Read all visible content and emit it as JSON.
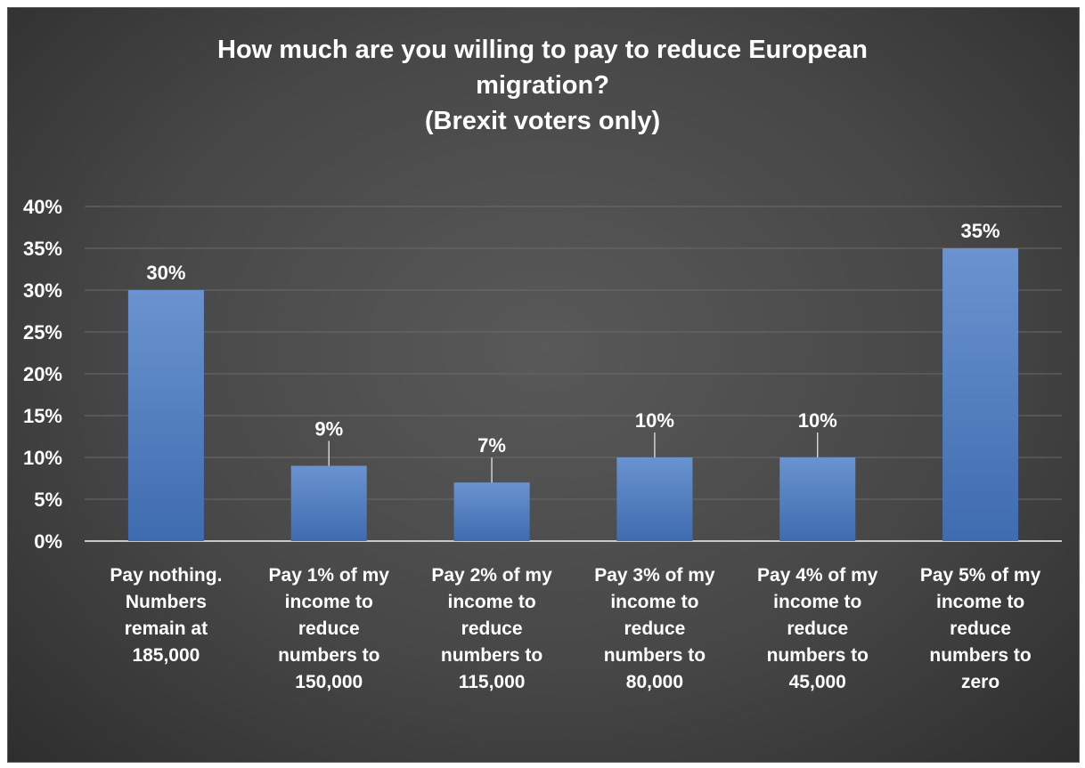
{
  "chart_data": {
    "type": "bar",
    "title": "How much are you willing  to pay to reduce European migration?",
    "subtitle": "(Brexit  voters only)",
    "title_lines": [
      "How much are you willing  to pay to reduce European",
      "migration?",
      "(Brexit  voters only)"
    ],
    "xlabel": "",
    "ylabel": "",
    "categories": [
      "Pay nothing. Numbers remain at 185,000",
      "Pay 1% of my income to reduce numbers to 150,000",
      "Pay 2% of my income to reduce numbers to 115,000",
      "Pay 3% of my income to reduce numbers to 80,000",
      "Pay 4% of my income to reduce numbers to 45,000",
      "Pay 5% of my income to reduce numbers to zero"
    ],
    "category_lines": [
      "Pay nothing.\nNumbers\nremain at\n185,000",
      "Pay 1% of my\nincome to\nreduce\nnumbers to\n150,000",
      "Pay 2% of my\nincome to\nreduce\nnumbers to\n115,000",
      "Pay 3% of my\nincome to\nreduce\nnumbers to\n80,000",
      "Pay 4% of my\nincome to\nreduce\nnumbers to\n45,000",
      "Pay 5% of my\nincome to\nreduce\nnumbers to\nzero"
    ],
    "values": [
      30,
      9,
      7,
      10,
      10,
      35
    ],
    "value_labels": [
      "30%",
      "9%",
      "7%",
      "10%",
      "10%",
      "35%"
    ],
    "y_ticks": [
      "0%",
      "5%",
      "10%",
      "15%",
      "20%",
      "25%",
      "30%",
      "35%",
      "40%"
    ],
    "ylim": [
      0,
      40
    ],
    "grid": true,
    "legend": "none",
    "colors": {
      "bar": "#5b86c5",
      "bar_dark": "#3d6aad",
      "background": "#474747",
      "text": "#ffffff",
      "grid": "#6a6a6a"
    }
  }
}
